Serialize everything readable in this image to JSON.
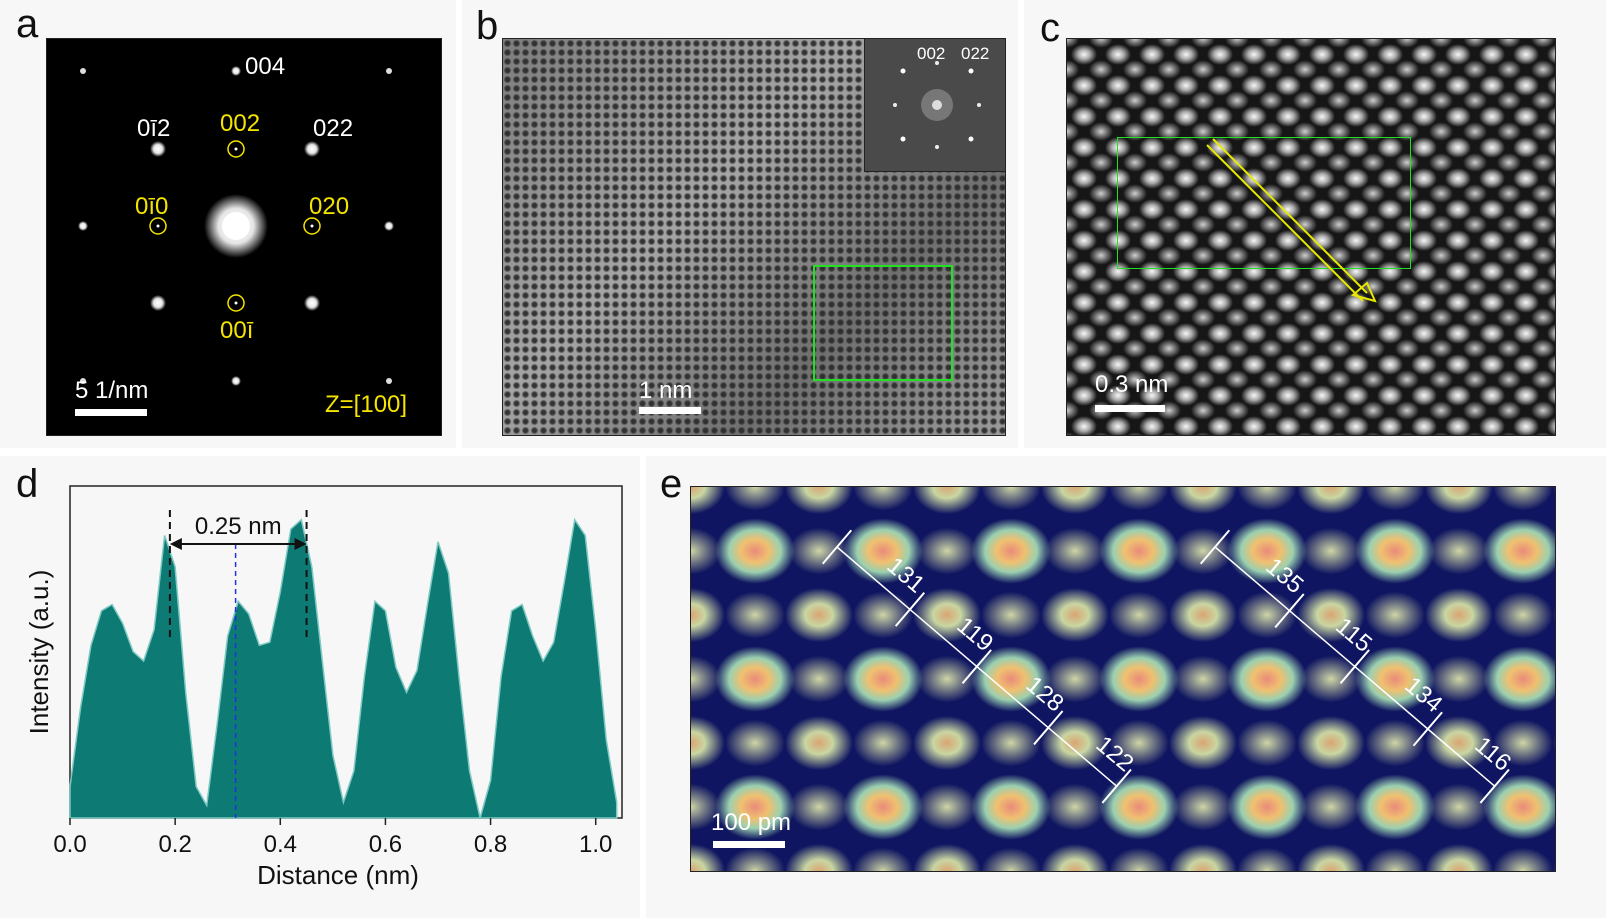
{
  "panels": {
    "a": {
      "label": "a",
      "spots": {
        "s004": "004",
        "s0m22": "0ī2",
        "s002": "002",
        "s022": "022",
        "s0m20": "0ī0",
        "s020": "020",
        "s00m2": "00ī"
      },
      "scale_bar": "5 1/nm",
      "zone_axis": "Z=[100]"
    },
    "b": {
      "label": "b",
      "inset_labels": [
        "002",
        "022"
      ],
      "scale_bar": "1 nm"
    },
    "c": {
      "label": "c",
      "scale_bar": "0.3 nm"
    },
    "d": {
      "label": "d",
      "annotation": "0.25 nm"
    },
    "e": {
      "label": "e",
      "distances_left": [
        "131",
        "119",
        "128",
        "122"
      ],
      "distances_right": [
        "135",
        "115",
        "134",
        "116"
      ],
      "scale_bar": "100 pm"
    }
  },
  "colors": {
    "profile_fill": "#0e7a74",
    "profile_edge": "#7ec9c2",
    "roi_box": "#22e022",
    "arrow": "#e8e800",
    "index_yellow": "#f5e400"
  },
  "chart_data": {
    "type": "area",
    "xlabel": "Distance (nm)",
    "ylabel": "Intensity (a.u.)",
    "xlim": [
      0.0,
      1.05
    ],
    "xticks": [
      "0.0",
      "0.2",
      "0.4",
      "0.6",
      "0.8",
      "1.0"
    ],
    "x": [
      0.0,
      0.02,
      0.04,
      0.06,
      0.08,
      0.1,
      0.12,
      0.14,
      0.16,
      0.18,
      0.2,
      0.22,
      0.24,
      0.26,
      0.28,
      0.3,
      0.32,
      0.34,
      0.36,
      0.38,
      0.4,
      0.42,
      0.44,
      0.46,
      0.48,
      0.5,
      0.52,
      0.54,
      0.56,
      0.58,
      0.6,
      0.62,
      0.64,
      0.66,
      0.68,
      0.7,
      0.72,
      0.74,
      0.76,
      0.78,
      0.8,
      0.82,
      0.84,
      0.86,
      0.88,
      0.9,
      0.92,
      0.94,
      0.96,
      0.98,
      1.0,
      1.02,
      1.04
    ],
    "y": [
      0.1,
      0.35,
      0.55,
      0.66,
      0.68,
      0.62,
      0.53,
      0.5,
      0.6,
      0.9,
      0.8,
      0.4,
      0.1,
      0.04,
      0.3,
      0.58,
      0.69,
      0.65,
      0.55,
      0.56,
      0.72,
      0.92,
      0.95,
      0.8,
      0.5,
      0.2,
      0.05,
      0.15,
      0.45,
      0.69,
      0.66,
      0.48,
      0.4,
      0.47,
      0.68,
      0.88,
      0.78,
      0.45,
      0.15,
      0.0,
      0.12,
      0.45,
      0.66,
      0.68,
      0.58,
      0.5,
      0.56,
      0.75,
      0.95,
      0.9,
      0.6,
      0.25,
      0.05
    ],
    "annotation": {
      "text": "0.25 nm",
      "x_from": 0.19,
      "x_to": 0.45,
      "center_line": 0.315
    }
  }
}
